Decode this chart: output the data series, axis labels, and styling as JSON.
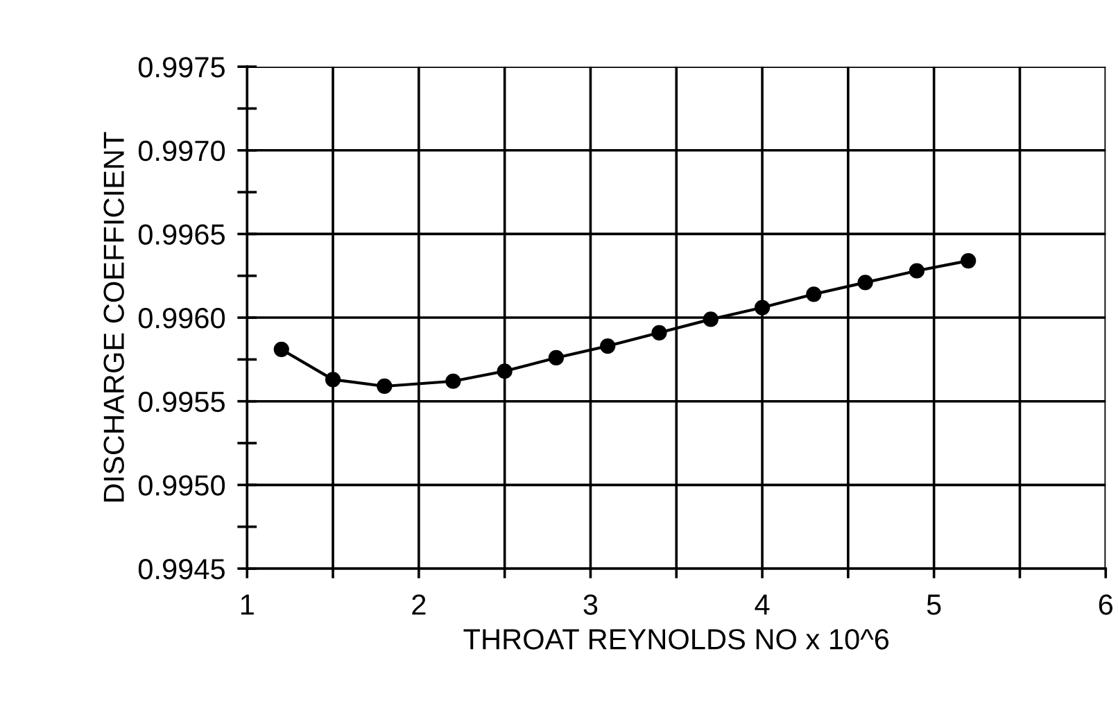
{
  "chart_data": {
    "type": "line",
    "xlabel": "THROAT REYNOLDS NO x 10^6",
    "ylabel": "DISCHARGE COEFFICIENT",
    "x": [
      1.2,
      1.5,
      1.8,
      2.2,
      2.5,
      2.8,
      3.1,
      3.4,
      3.7,
      4.0,
      4.3,
      4.6,
      4.9,
      5.2
    ],
    "series": [
      {
        "color": "#000000",
        "values": [
          0.99581,
          0.99563,
          0.99559,
          0.99562,
          0.99568,
          0.99576,
          0.99583,
          0.99591,
          0.99599,
          0.99606,
          0.99614,
          0.99621,
          0.99628,
          0.99634
        ]
      }
    ],
    "xlim": [
      1,
      6
    ],
    "xticks": [
      1,
      {
        "value": 1.5,
        "label": null
      },
      2,
      {
        "value": 2.5,
        "label": null
      },
      3,
      {
        "value": 3.5,
        "label": null
      },
      4,
      {
        "value": 4.5,
        "label": null
      },
      5,
      {
        "value": 5.5,
        "label": null
      },
      6
    ],
    "ylim": [
      0.9945,
      0.9975
    ],
    "yticks": [
      0.9945,
      {
        "value": 0.99475,
        "label": null
      },
      {
        "value": 0.995,
        "label": "0.9950"
      },
      {
        "value": 0.99525,
        "label": null
      },
      0.9955,
      {
        "value": 0.99575,
        "label": null
      },
      {
        "value": 0.996,
        "label": "0.9960"
      },
      {
        "value": 0.99625,
        "label": null
      },
      0.9965,
      {
        "value": 0.99675,
        "label": null
      },
      {
        "value": 0.997,
        "label": "0.9970"
      },
      {
        "value": 0.99725,
        "label": null
      },
      0.9975
    ],
    "grid": true,
    "marker": "circle",
    "line_style": "solid"
  }
}
